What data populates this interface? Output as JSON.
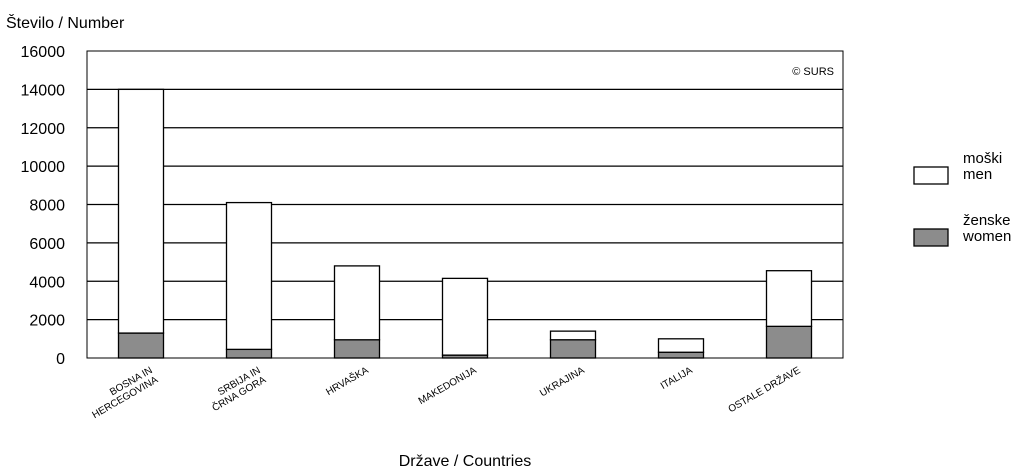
{
  "chart_data": {
    "type": "bar",
    "stacked": true,
    "ylabel": "Število / Number",
    "xlabel": "Države / Countries",
    "ylim": [
      0,
      16000
    ],
    "yticks": [
      "0",
      "2000",
      "4000",
      "6000",
      "8000",
      "10000",
      "12000",
      "14000",
      "16000"
    ],
    "grid": true,
    "legend_position": "right",
    "watermark": "© SURS",
    "categories": [
      [
        "BOSNA IN",
        "HERCEGOVINA"
      ],
      [
        "SRBIJA IN",
        "ČRNA GORA"
      ],
      [
        "HRVAŠKA"
      ],
      [
        "MAKEDONIJA"
      ],
      [
        "UKRAJINA"
      ],
      [
        "ITALIJA"
      ],
      [
        "OSTALE DRŽAVE"
      ]
    ],
    "series": [
      {
        "name": "ženske / women",
        "legend": [
          "ženske",
          "women"
        ],
        "color": "#8c8c8c",
        "values": [
          1300,
          450,
          950,
          150,
          950,
          300,
          1650
        ]
      },
      {
        "name": "moški / men",
        "legend": [
          "moški",
          "men"
        ],
        "color": "#ffffff",
        "values": [
          12700,
          7650,
          3850,
          4000,
          450,
          700,
          2900
        ]
      }
    ]
  }
}
